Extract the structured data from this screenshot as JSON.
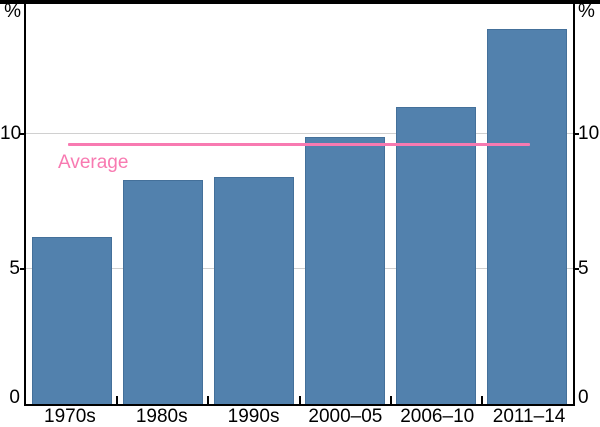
{
  "chart_data": {
    "type": "bar",
    "title": "",
    "categories": [
      "1970s",
      "1980s",
      "1990s",
      "2000–05",
      "2006–10",
      "2011–14"
    ],
    "values": [
      6.2,
      8.3,
      8.4,
      9.9,
      11.0,
      13.9
    ],
    "unit_label_left": "%",
    "unit_label_right": "%",
    "yticks": [
      0,
      5,
      10
    ],
    "ylim": [
      0,
      14.9
    ],
    "grid": "horizontal-only",
    "legend_position": "none",
    "average_line": {
      "label": "Average",
      "value": 9.6,
      "x_start_frac": 0.077,
      "x_end_frac": 0.922
    },
    "colors": {
      "bar": "#5281ad",
      "bar_border": "#44709a",
      "average_line": "#f87ab1",
      "grid": "#d0d0d0",
      "axis": "#000000",
      "text": "#000000"
    }
  }
}
